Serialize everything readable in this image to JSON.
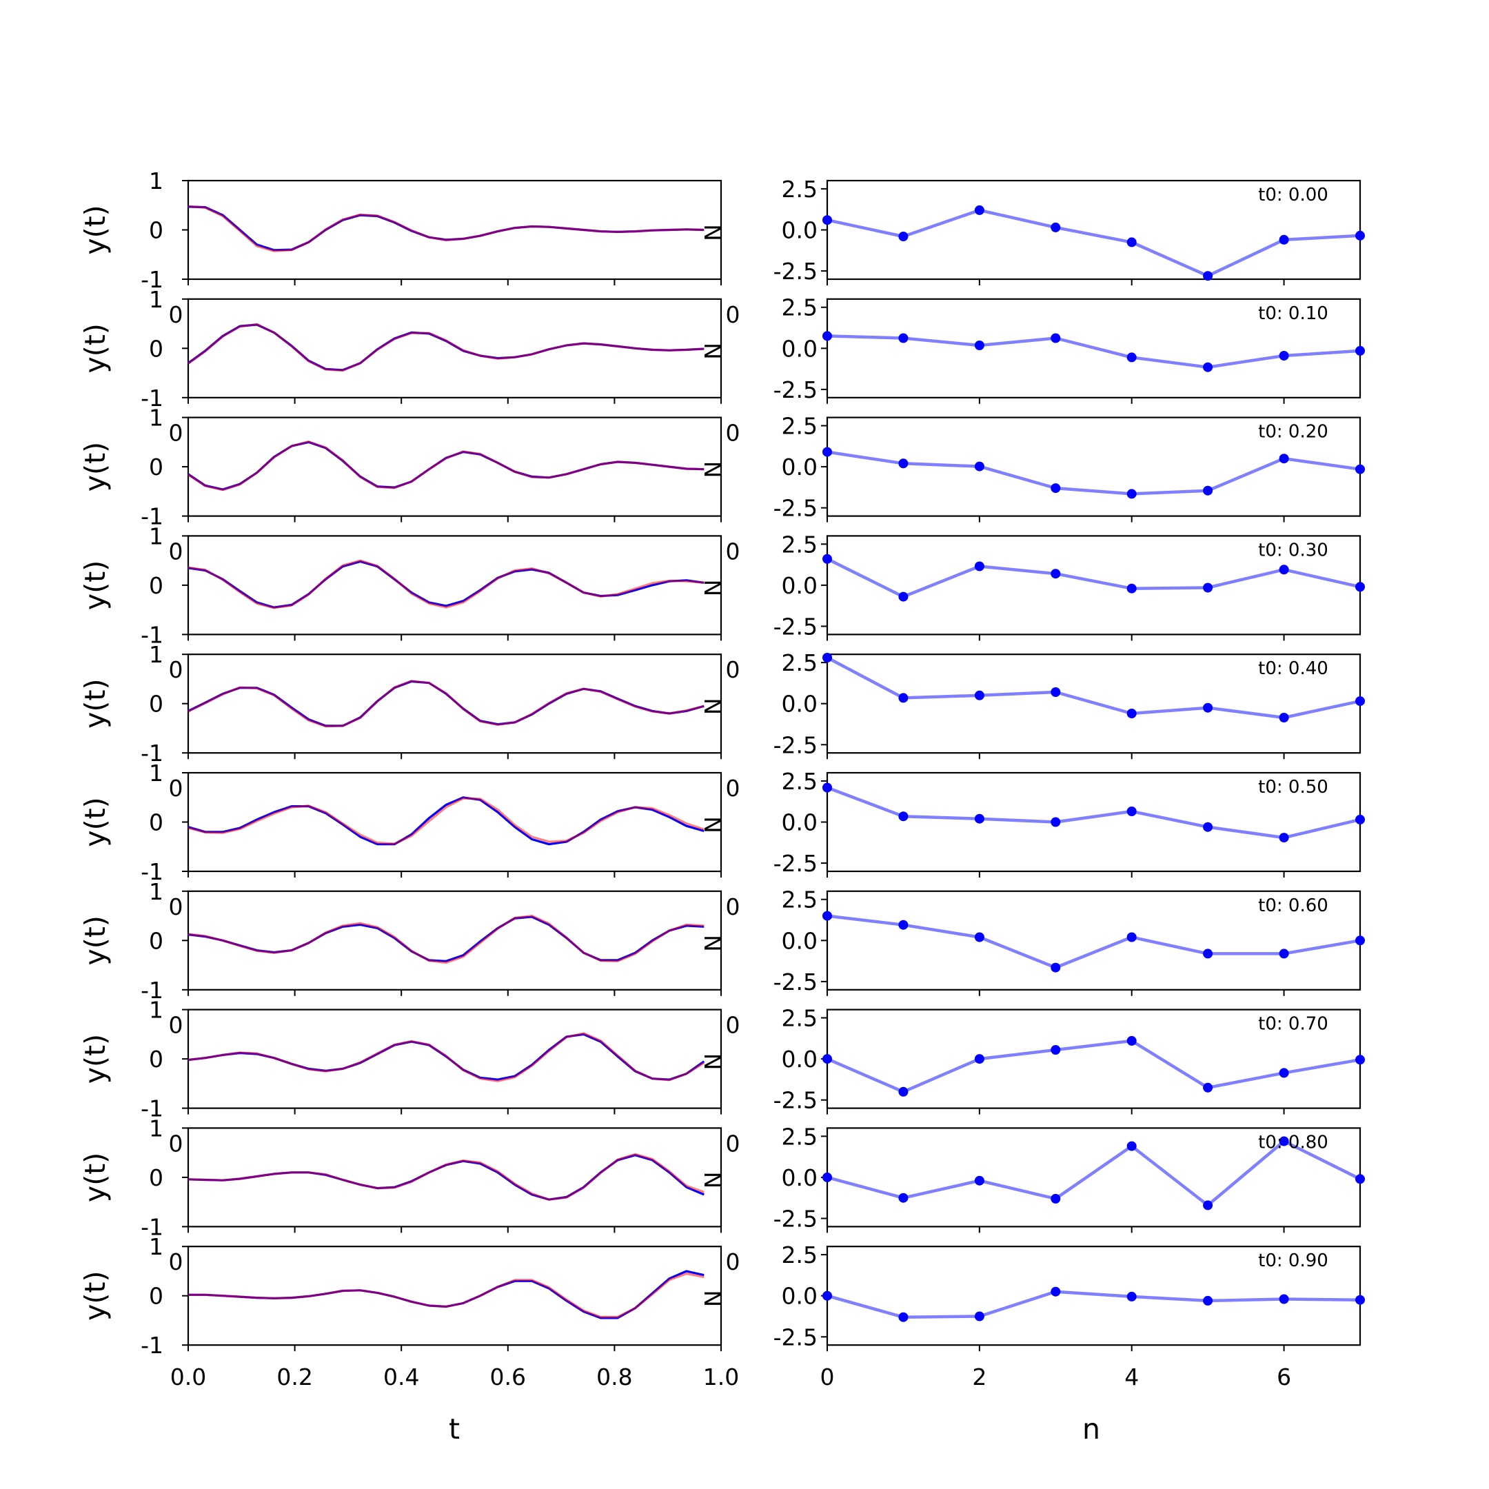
{
  "chart_data": [
    {
      "type": "line",
      "panel": "left",
      "xlabel": "t",
      "ylabel": "y(t)",
      "xlim": [
        0.0,
        1.0
      ],
      "ylim": [
        -1,
        1
      ],
      "xticks": [
        "0.0",
        "0.2",
        "0.4",
        "0.6",
        "0.8",
        "1.0"
      ],
      "yticks": [
        "-1",
        "0",
        "1"
      ],
      "overlap_tick_labels": [
        "0",
        "0"
      ],
      "y_edge_label": "N",
      "t": [
        0.0,
        0.032,
        0.065,
        0.097,
        0.129,
        0.161,
        0.194,
        0.226,
        0.258,
        0.29,
        0.323,
        0.355,
        0.387,
        0.419,
        0.452,
        0.484,
        0.516,
        0.548,
        0.581,
        0.613,
        0.645,
        0.677,
        0.71,
        0.742,
        0.774,
        0.806,
        0.839,
        0.871,
        0.903,
        0.935,
        0.968
      ],
      "series_colors": [
        "#0000ff",
        "#ff0000"
      ],
      "rows": [
        {
          "blue": [
            0.47,
            0.46,
            0.3,
            0.0,
            -0.3,
            -0.41,
            -0.4,
            -0.25,
            0.0,
            0.2,
            0.3,
            0.28,
            0.15,
            -0.02,
            -0.15,
            -0.2,
            -0.18,
            -0.12,
            -0.03,
            0.04,
            0.07,
            0.06,
            0.03,
            0.0,
            -0.03,
            -0.04,
            -0.03,
            -0.01,
            0.0,
            0.01,
            0.0
          ],
          "red": [
            0.48,
            0.45,
            0.28,
            -0.02,
            -0.33,
            -0.43,
            -0.41,
            -0.25,
            0.01,
            0.21,
            0.31,
            0.29,
            0.16,
            -0.01,
            -0.15,
            -0.21,
            -0.18,
            -0.12,
            -0.03,
            0.04,
            0.07,
            0.06,
            0.03,
            0.0,
            -0.03,
            -0.04,
            -0.03,
            -0.01,
            0.0,
            0.01,
            0.0
          ]
        },
        {
          "blue": [
            -0.3,
            -0.05,
            0.25,
            0.45,
            0.48,
            0.32,
            0.05,
            -0.25,
            -0.42,
            -0.44,
            -0.3,
            -0.02,
            0.2,
            0.32,
            0.3,
            0.15,
            -0.05,
            -0.15,
            -0.2,
            -0.18,
            -0.12,
            -0.02,
            0.06,
            0.1,
            0.08,
            0.04,
            0.0,
            -0.03,
            -0.04,
            -0.03,
            -0.01
          ],
          "red": [
            -0.31,
            -0.06,
            0.24,
            0.44,
            0.49,
            0.32,
            0.04,
            -0.26,
            -0.43,
            -0.45,
            -0.3,
            -0.03,
            0.19,
            0.31,
            0.31,
            0.16,
            -0.04,
            -0.15,
            -0.21,
            -0.18,
            -0.12,
            -0.02,
            0.06,
            0.1,
            0.08,
            0.04,
            0.0,
            -0.03,
            -0.04,
            -0.03,
            -0.01
          ]
        },
        {
          "blue": [
            -0.15,
            -0.38,
            -0.46,
            -0.35,
            -0.12,
            0.2,
            0.42,
            0.5,
            0.38,
            0.12,
            -0.2,
            -0.4,
            -0.42,
            -0.3,
            -0.05,
            0.18,
            0.3,
            0.25,
            0.08,
            -0.1,
            -0.2,
            -0.22,
            -0.15,
            -0.05,
            0.05,
            0.1,
            0.08,
            0.04,
            0.0,
            -0.04,
            -0.05
          ],
          "red": [
            -0.16,
            -0.39,
            -0.47,
            -0.36,
            -0.12,
            0.19,
            0.42,
            0.51,
            0.39,
            0.13,
            -0.21,
            -0.41,
            -0.43,
            -0.3,
            -0.05,
            0.17,
            0.31,
            0.26,
            0.08,
            -0.1,
            -0.21,
            -0.22,
            -0.15,
            -0.05,
            0.05,
            0.1,
            0.08,
            0.04,
            0.0,
            -0.04,
            -0.05
          ]
        },
        {
          "blue": [
            0.35,
            0.3,
            0.12,
            -0.12,
            -0.35,
            -0.45,
            -0.4,
            -0.18,
            0.12,
            0.38,
            0.48,
            0.38,
            0.12,
            -0.15,
            -0.35,
            -0.42,
            -0.32,
            -0.1,
            0.15,
            0.28,
            0.32,
            0.25,
            0.05,
            -0.15,
            -0.22,
            -0.2,
            -0.1,
            0.0,
            0.08,
            0.1,
            0.05
          ],
          "red": [
            0.36,
            0.31,
            0.11,
            -0.14,
            -0.37,
            -0.46,
            -0.41,
            -0.19,
            0.13,
            0.4,
            0.5,
            0.39,
            0.13,
            -0.17,
            -0.37,
            -0.45,
            -0.35,
            -0.12,
            0.14,
            0.3,
            0.34,
            0.24,
            0.05,
            -0.15,
            -0.23,
            -0.18,
            -0.07,
            0.04,
            0.09,
            0.08,
            0.05
          ]
        },
        {
          "blue": [
            -0.15,
            0.02,
            0.2,
            0.32,
            0.32,
            0.18,
            -0.08,
            -0.32,
            -0.45,
            -0.45,
            -0.28,
            0.05,
            0.32,
            0.45,
            0.42,
            0.2,
            -0.1,
            -0.35,
            -0.42,
            -0.38,
            -0.22,
            0.0,
            0.2,
            0.3,
            0.25,
            0.1,
            -0.05,
            -0.15,
            -0.2,
            -0.15,
            -0.05
          ],
          "red": [
            -0.16,
            0.01,
            0.19,
            0.33,
            0.31,
            0.17,
            -0.1,
            -0.34,
            -0.46,
            -0.45,
            -0.29,
            0.04,
            0.33,
            0.46,
            0.42,
            0.21,
            -0.11,
            -0.36,
            -0.43,
            -0.38,
            -0.21,
            0.01,
            0.21,
            0.3,
            0.24,
            0.09,
            -0.06,
            -0.16,
            -0.2,
            -0.14,
            -0.05
          ]
        },
        {
          "blue": [
            -0.1,
            -0.2,
            -0.2,
            -0.12,
            0.05,
            0.2,
            0.32,
            0.32,
            0.18,
            -0.05,
            -0.3,
            -0.45,
            -0.45,
            -0.25,
            0.08,
            0.35,
            0.5,
            0.45,
            0.2,
            -0.1,
            -0.35,
            -0.45,
            -0.4,
            -0.2,
            0.05,
            0.22,
            0.3,
            0.25,
            0.1,
            -0.08,
            -0.18
          ],
          "red": [
            -0.12,
            -0.21,
            -0.22,
            -0.14,
            0.02,
            0.17,
            0.3,
            0.33,
            0.2,
            -0.03,
            -0.26,
            -0.42,
            -0.44,
            -0.28,
            0.02,
            0.3,
            0.48,
            0.47,
            0.25,
            -0.06,
            -0.3,
            -0.4,
            -0.38,
            -0.22,
            0.02,
            0.2,
            0.3,
            0.28,
            0.14,
            -0.03,
            -0.15
          ]
        },
        {
          "blue": [
            0.12,
            0.08,
            0.0,
            -0.1,
            -0.2,
            -0.24,
            -0.2,
            -0.05,
            0.15,
            0.28,
            0.32,
            0.25,
            0.05,
            -0.22,
            -0.4,
            -0.42,
            -0.3,
            -0.02,
            0.25,
            0.45,
            0.48,
            0.32,
            0.05,
            -0.25,
            -0.4,
            -0.4,
            -0.25,
            0.0,
            0.2,
            0.3,
            0.28
          ],
          "red": [
            0.13,
            0.09,
            0.0,
            -0.11,
            -0.21,
            -0.25,
            -0.2,
            -0.05,
            0.16,
            0.3,
            0.35,
            0.27,
            0.07,
            -0.21,
            -0.41,
            -0.45,
            -0.33,
            -0.05,
            0.24,
            0.46,
            0.5,
            0.34,
            0.06,
            -0.25,
            -0.41,
            -0.42,
            -0.27,
            -0.02,
            0.2,
            0.32,
            0.3
          ]
        },
        {
          "blue": [
            -0.02,
            0.02,
            0.08,
            0.12,
            0.1,
            0.02,
            -0.1,
            -0.2,
            -0.24,
            -0.2,
            -0.08,
            0.1,
            0.28,
            0.35,
            0.28,
            0.05,
            -0.22,
            -0.38,
            -0.42,
            -0.35,
            -0.12,
            0.18,
            0.45,
            0.5,
            0.35,
            0.05,
            -0.25,
            -0.4,
            -0.42,
            -0.3,
            -0.05
          ],
          "red": [
            -0.02,
            0.02,
            0.08,
            0.13,
            0.11,
            0.02,
            -0.1,
            -0.21,
            -0.25,
            -0.2,
            -0.07,
            0.11,
            0.29,
            0.36,
            0.29,
            0.06,
            -0.23,
            -0.4,
            -0.45,
            -0.37,
            -0.14,
            0.16,
            0.44,
            0.52,
            0.37,
            0.07,
            -0.24,
            -0.4,
            -0.43,
            -0.3,
            -0.08
          ]
        },
        {
          "blue": [
            -0.04,
            -0.05,
            -0.06,
            -0.03,
            0.02,
            0.07,
            0.1,
            0.1,
            0.05,
            -0.05,
            -0.15,
            -0.22,
            -0.2,
            -0.08,
            0.1,
            0.25,
            0.33,
            0.28,
            0.1,
            -0.15,
            -0.35,
            -0.45,
            -0.4,
            -0.2,
            0.1,
            0.35,
            0.45,
            0.35,
            0.1,
            -0.2,
            -0.35
          ],
          "red": [
            -0.04,
            -0.05,
            -0.06,
            -0.03,
            0.02,
            0.07,
            0.1,
            0.1,
            0.06,
            -0.05,
            -0.15,
            -0.22,
            -0.21,
            -0.09,
            0.1,
            0.26,
            0.34,
            0.3,
            0.12,
            -0.13,
            -0.33,
            -0.45,
            -0.41,
            -0.21,
            0.09,
            0.36,
            0.47,
            0.37,
            0.12,
            -0.17,
            -0.3
          ]
        },
        {
          "blue": [
            0.02,
            0.02,
            0.0,
            -0.02,
            -0.04,
            -0.05,
            -0.04,
            -0.01,
            0.04,
            0.1,
            0.11,
            0.06,
            -0.02,
            -0.12,
            -0.2,
            -0.22,
            -0.15,
            0.0,
            0.18,
            0.3,
            0.3,
            0.15,
            -0.1,
            -0.32,
            -0.45,
            -0.45,
            -0.25,
            0.05,
            0.35,
            0.5,
            0.42
          ],
          "red": [
            0.02,
            0.02,
            0.0,
            -0.02,
            -0.04,
            -0.05,
            -0.04,
            -0.01,
            0.04,
            0.1,
            0.11,
            0.06,
            -0.02,
            -0.12,
            -0.2,
            -0.22,
            -0.15,
            0.0,
            0.18,
            0.32,
            0.32,
            0.17,
            -0.08,
            -0.3,
            -0.43,
            -0.43,
            -0.25,
            0.03,
            0.32,
            0.45,
            0.38
          ]
        }
      ]
    },
    {
      "type": "line",
      "panel": "right",
      "xlabel": "n",
      "ylabel": "",
      "xlim": [
        0,
        7
      ],
      "ylim": [
        -3,
        3
      ],
      "xticks": [
        "0",
        "2",
        "4",
        "6"
      ],
      "yticks": [
        "2.5",
        "0.0",
        "-2.5"
      ],
      "overlap_tick_labels": [
        "0",
        "0"
      ],
      "line_color": "#8080ff",
      "marker_color": "#0000ff",
      "n": [
        0,
        1,
        2,
        3,
        4,
        5,
        6,
        7
      ],
      "rows": [
        {
          "label": "t0: 0.00",
          "values": [
            0.6,
            -0.4,
            1.2,
            0.15,
            -0.75,
            -2.8,
            -0.6,
            -0.35
          ]
        },
        {
          "label": "t0: 0.10",
          "values": [
            0.75,
            0.62,
            0.18,
            0.62,
            -0.55,
            -1.15,
            -0.45,
            -0.15
          ]
        },
        {
          "label": "t0: 0.20",
          "values": [
            0.9,
            0.2,
            0.02,
            -1.3,
            -1.65,
            -1.45,
            0.5,
            -0.15
          ]
        },
        {
          "label": "t0: 0.30",
          "values": [
            1.6,
            -0.7,
            1.15,
            0.7,
            -0.2,
            -0.15,
            0.95,
            -0.1
          ]
        },
        {
          "label": "t0: 0.40",
          "values": [
            2.8,
            0.35,
            0.5,
            0.7,
            -0.6,
            -0.25,
            -0.85,
            0.15
          ]
        },
        {
          "label": "t0: 0.50",
          "values": [
            2.1,
            0.35,
            0.2,
            0.0,
            0.65,
            -0.3,
            -0.95,
            0.15
          ]
        },
        {
          "label": "t0: 0.60",
          "values": [
            1.5,
            0.95,
            0.2,
            -1.65,
            0.2,
            -0.8,
            -0.8,
            0.0
          ]
        },
        {
          "label": "t0: 0.70",
          "values": [
            0.0,
            -2.0,
            0.0,
            0.55,
            1.1,
            -1.75,
            -0.85,
            -0.05
          ]
        },
        {
          "label": "t0: 0.80",
          "values": [
            0.0,
            -1.25,
            -0.2,
            -1.3,
            1.9,
            -1.7,
            2.2,
            -0.1
          ]
        },
        {
          "label": "t0: 0.90",
          "values": [
            0.0,
            -1.3,
            -1.25,
            0.25,
            -0.05,
            -0.3,
            -0.2,
            -0.25
          ]
        }
      ]
    }
  ]
}
